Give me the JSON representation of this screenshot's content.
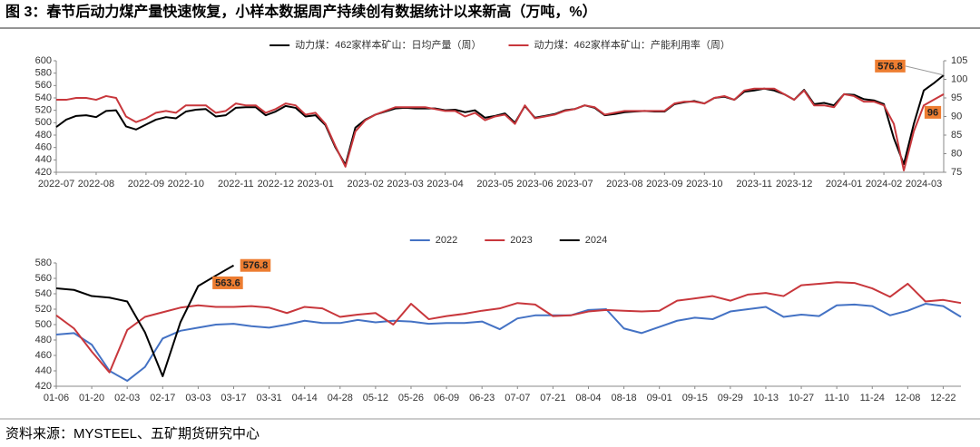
{
  "header": {
    "title": "图 3：春节后动力煤产量快速恢复，小样本数据周产持续创有数据统计以来新高（万吨，%）"
  },
  "chart_data": [
    {
      "type": "line",
      "legend": "top",
      "categories": [
        "2022-07",
        null,
        null,
        null,
        "2022-08",
        null,
        null,
        null,
        null,
        "2022-09",
        null,
        null,
        null,
        "2022-10",
        null,
        null,
        null,
        null,
        "2022-11",
        null,
        null,
        null,
        "2022-12",
        null,
        null,
        null,
        "2023-01",
        null,
        null,
        null,
        null,
        "2023-02",
        null,
        null,
        null,
        "2023-03",
        null,
        null,
        null,
        "2023-04",
        null,
        null,
        null,
        null,
        "2023-05",
        null,
        null,
        null,
        "2023-06",
        null,
        null,
        null,
        "2023-07",
        null,
        null,
        null,
        null,
        "2023-08",
        null,
        null,
        null,
        "2023-09",
        null,
        null,
        null,
        "2023-10",
        null,
        null,
        null,
        null,
        "2023-11",
        null,
        null,
        null,
        "2023-12",
        null,
        null,
        null,
        null,
        "2024-01",
        null,
        null,
        null,
        "2024-02",
        null,
        null,
        null,
        "2024-03",
        null,
        null
      ],
      "series": [
        {
          "name": "动力煤：462家样本矿山：日均产量（周）",
          "color": "#000000",
          "values": [
            493,
            505,
            511,
            512,
            509,
            519,
            520,
            494,
            489,
            497,
            505,
            509,
            507,
            518,
            521,
            522,
            510,
            512,
            524,
            525,
            525,
            512,
            518,
            527,
            524,
            510,
            512,
            496,
            460,
            432,
            492,
            505,
            513,
            518,
            523,
            524,
            523,
            523,
            523,
            520,
            521,
            517,
            520,
            508,
            511,
            515,
            500,
            527,
            508,
            511,
            514,
            520,
            522,
            528,
            524,
            512,
            514,
            517,
            518,
            519,
            518,
            518,
            530,
            533,
            535,
            531,
            540,
            542,
            537,
            550,
            552,
            555,
            552,
            546,
            537,
            553,
            530,
            532,
            528,
            546,
            545,
            538,
            536,
            530,
            475,
            433,
            498,
            552,
            563.6,
            576.8
          ]
        },
        {
          "name": "动力煤：462家样本矿山：产能利用率（周）",
          "color": "#c8373c",
          "axis": "y2",
          "values": [
            94.5,
            94.5,
            95,
            95,
            94.5,
            95.5,
            95,
            90,
            88.5,
            89.5,
            91,
            91.5,
            91,
            93,
            93,
            93,
            91,
            91.5,
            93.5,
            93,
            93,
            91,
            92,
            93.5,
            93,
            90.5,
            91,
            88,
            82,
            76.5,
            86,
            89,
            90.5,
            91.5,
            92.5,
            92.5,
            92.5,
            92.5,
            92,
            91.5,
            91.5,
            90,
            91,
            89,
            90,
            90.5,
            88,
            93,
            89.5,
            90,
            90.5,
            91.5,
            92,
            93,
            92.5,
            90.5,
            91,
            91.5,
            91.5,
            91.5,
            91.5,
            91.5,
            93.5,
            94,
            94,
            93.5,
            95,
            95.5,
            94.5,
            97,
            97.5,
            97.5,
            97.5,
            96,
            94.5,
            97,
            93,
            93,
            92.5,
            96,
            95.5,
            94,
            94,
            93,
            88,
            75.5,
            86,
            93,
            94.5,
            96
          ]
        }
      ],
      "ylim": [
        420,
        600
      ],
      "yticks": [
        420,
        440,
        460,
        480,
        500,
        520,
        540,
        560,
        580,
        600
      ],
      "y2lim": [
        75,
        105
      ],
      "y2ticks": [
        75,
        80,
        85,
        90,
        95,
        100,
        105
      ]
    },
    {
      "type": "line",
      "legend": "top",
      "categories": [
        "01-06",
        null,
        "01-20",
        null,
        "02-03",
        null,
        "02-17",
        null,
        "03-03",
        null,
        "03-17",
        null,
        "03-31",
        null,
        "04-14",
        null,
        "04-28",
        null,
        "05-12",
        null,
        "05-26",
        null,
        "06-09",
        null,
        "06-23",
        null,
        "07-07",
        null,
        "07-21",
        null,
        "08-04",
        null,
        "08-18",
        null,
        "09-01",
        null,
        "09-15",
        null,
        "09-29",
        null,
        "10-13",
        null,
        "10-27",
        null,
        "11-10",
        null,
        "11-24",
        null,
        "12-08",
        null,
        "12-22",
        null
      ],
      "series": [
        {
          "name": "2022",
          "color": "#4472c4",
          "values": [
            487,
            489,
            474,
            440,
            427,
            445,
            482,
            492,
            496,
            500,
            501,
            498,
            496,
            500,
            505,
            502,
            502,
            506,
            503,
            505,
            504,
            501,
            502,
            502,
            504,
            494,
            508,
            512,
            512,
            512,
            519,
            520,
            495,
            489,
            497,
            505,
            509,
            507,
            517,
            520,
            523,
            510,
            513,
            511,
            525,
            526,
            524,
            512,
            518,
            527,
            524,
            510
          ]
        },
        {
          "name": "2023",
          "color": "#c8373c",
          "values": [
            512,
            495,
            465,
            438,
            493,
            510,
            516,
            522,
            525,
            523,
            523,
            524,
            522,
            515,
            523,
            521,
            510,
            513,
            515,
            500,
            527,
            507,
            511,
            514,
            518,
            521,
            528,
            526,
            511,
            512,
            517,
            519,
            518,
            517,
            518,
            531,
            534,
            537,
            531,
            539,
            541,
            537,
            551,
            553,
            555,
            554,
            547,
            536,
            553,
            530,
            532,
            528
          ]
        },
        {
          "name": "2024",
          "color": "#000000",
          "values": [
            547,
            545,
            537,
            535,
            530,
            490,
            433,
            503,
            550,
            563.6,
            576.8,
            null,
            null,
            null,
            null,
            null,
            null,
            null,
            null,
            null,
            null,
            null,
            null,
            null,
            null,
            null,
            null,
            null,
            null,
            null,
            null,
            null,
            null,
            null,
            null,
            null,
            null,
            null,
            null,
            null,
            null,
            null,
            null,
            null,
            null,
            null,
            null,
            null,
            null,
            null,
            null,
            null
          ]
        }
      ],
      "ylim": [
        420,
        580
      ],
      "yticks": [
        420,
        440,
        460,
        480,
        500,
        520,
        540,
        560,
        580
      ]
    }
  ],
  "footer": {
    "source": "资料来源：MYSTEEL、五矿期货研究中心"
  }
}
